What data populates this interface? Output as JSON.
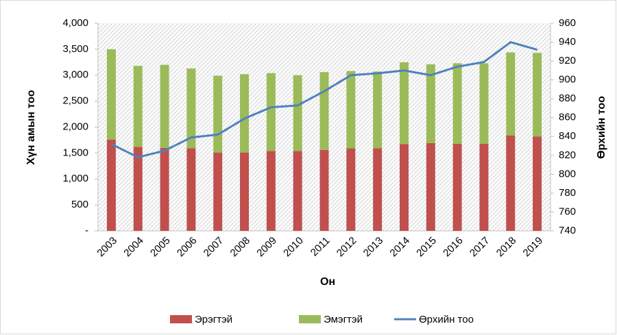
{
  "chart_data": {
    "type": "bar-line",
    "xlabel": "Он",
    "ylabel": "Хүн амын тоо",
    "y2label": "Өрхийн тоо",
    "categories": [
      "2003",
      "2004",
      "2005",
      "2006",
      "2007",
      "2008",
      "2009",
      "2010",
      "2011",
      "2012",
      "2013",
      "2014",
      "2015",
      "2016",
      "2017",
      "2018",
      "2019"
    ],
    "series": [
      {
        "name": "Эрэгтэй",
        "color": "#c0504d",
        "type": "bar",
        "values": [
          1760,
          1620,
          1600,
          1590,
          1510,
          1510,
          1540,
          1540,
          1560,
          1590,
          1590,
          1670,
          1690,
          1680,
          1680,
          1840,
          1820
        ]
      },
      {
        "name": "Эмэгтэй",
        "color": "#9bbb59",
        "type": "bar",
        "values": [
          1740,
          1560,
          1600,
          1540,
          1480,
          1510,
          1500,
          1460,
          1500,
          1490,
          1480,
          1580,
          1520,
          1550,
          1550,
          1600,
          1610
        ]
      },
      {
        "name": "Өрхийн тоо",
        "color": "#4f81bd",
        "type": "line",
        "axis": "y2",
        "values": [
          832,
          818,
          825,
          839,
          842,
          859,
          871,
          873,
          888,
          905,
          907,
          910,
          905,
          914,
          919,
          940,
          932
        ]
      }
    ],
    "ylim": [
      0,
      4000
    ],
    "yticks": [
      {
        "value": 0,
        "label": "-"
      },
      500,
      {
        "value": 1000,
        "label": "1,000"
      },
      {
        "value": 1500,
        "label": "1,500"
      },
      {
        "value": 2000,
        "label": "2,000"
      },
      {
        "value": 2500,
        "label": "2,500"
      },
      {
        "value": 3000,
        "label": "3,000"
      },
      {
        "value": 3500,
        "label": "3,500"
      },
      {
        "value": 4000,
        "label": "4,000"
      }
    ],
    "y2lim": [
      740,
      960
    ],
    "y2ticks": [
      740,
      760,
      780,
      800,
      820,
      840,
      860,
      880,
      900,
      920,
      940,
      960
    ],
    "stacked": true,
    "legend": "bottom"
  }
}
